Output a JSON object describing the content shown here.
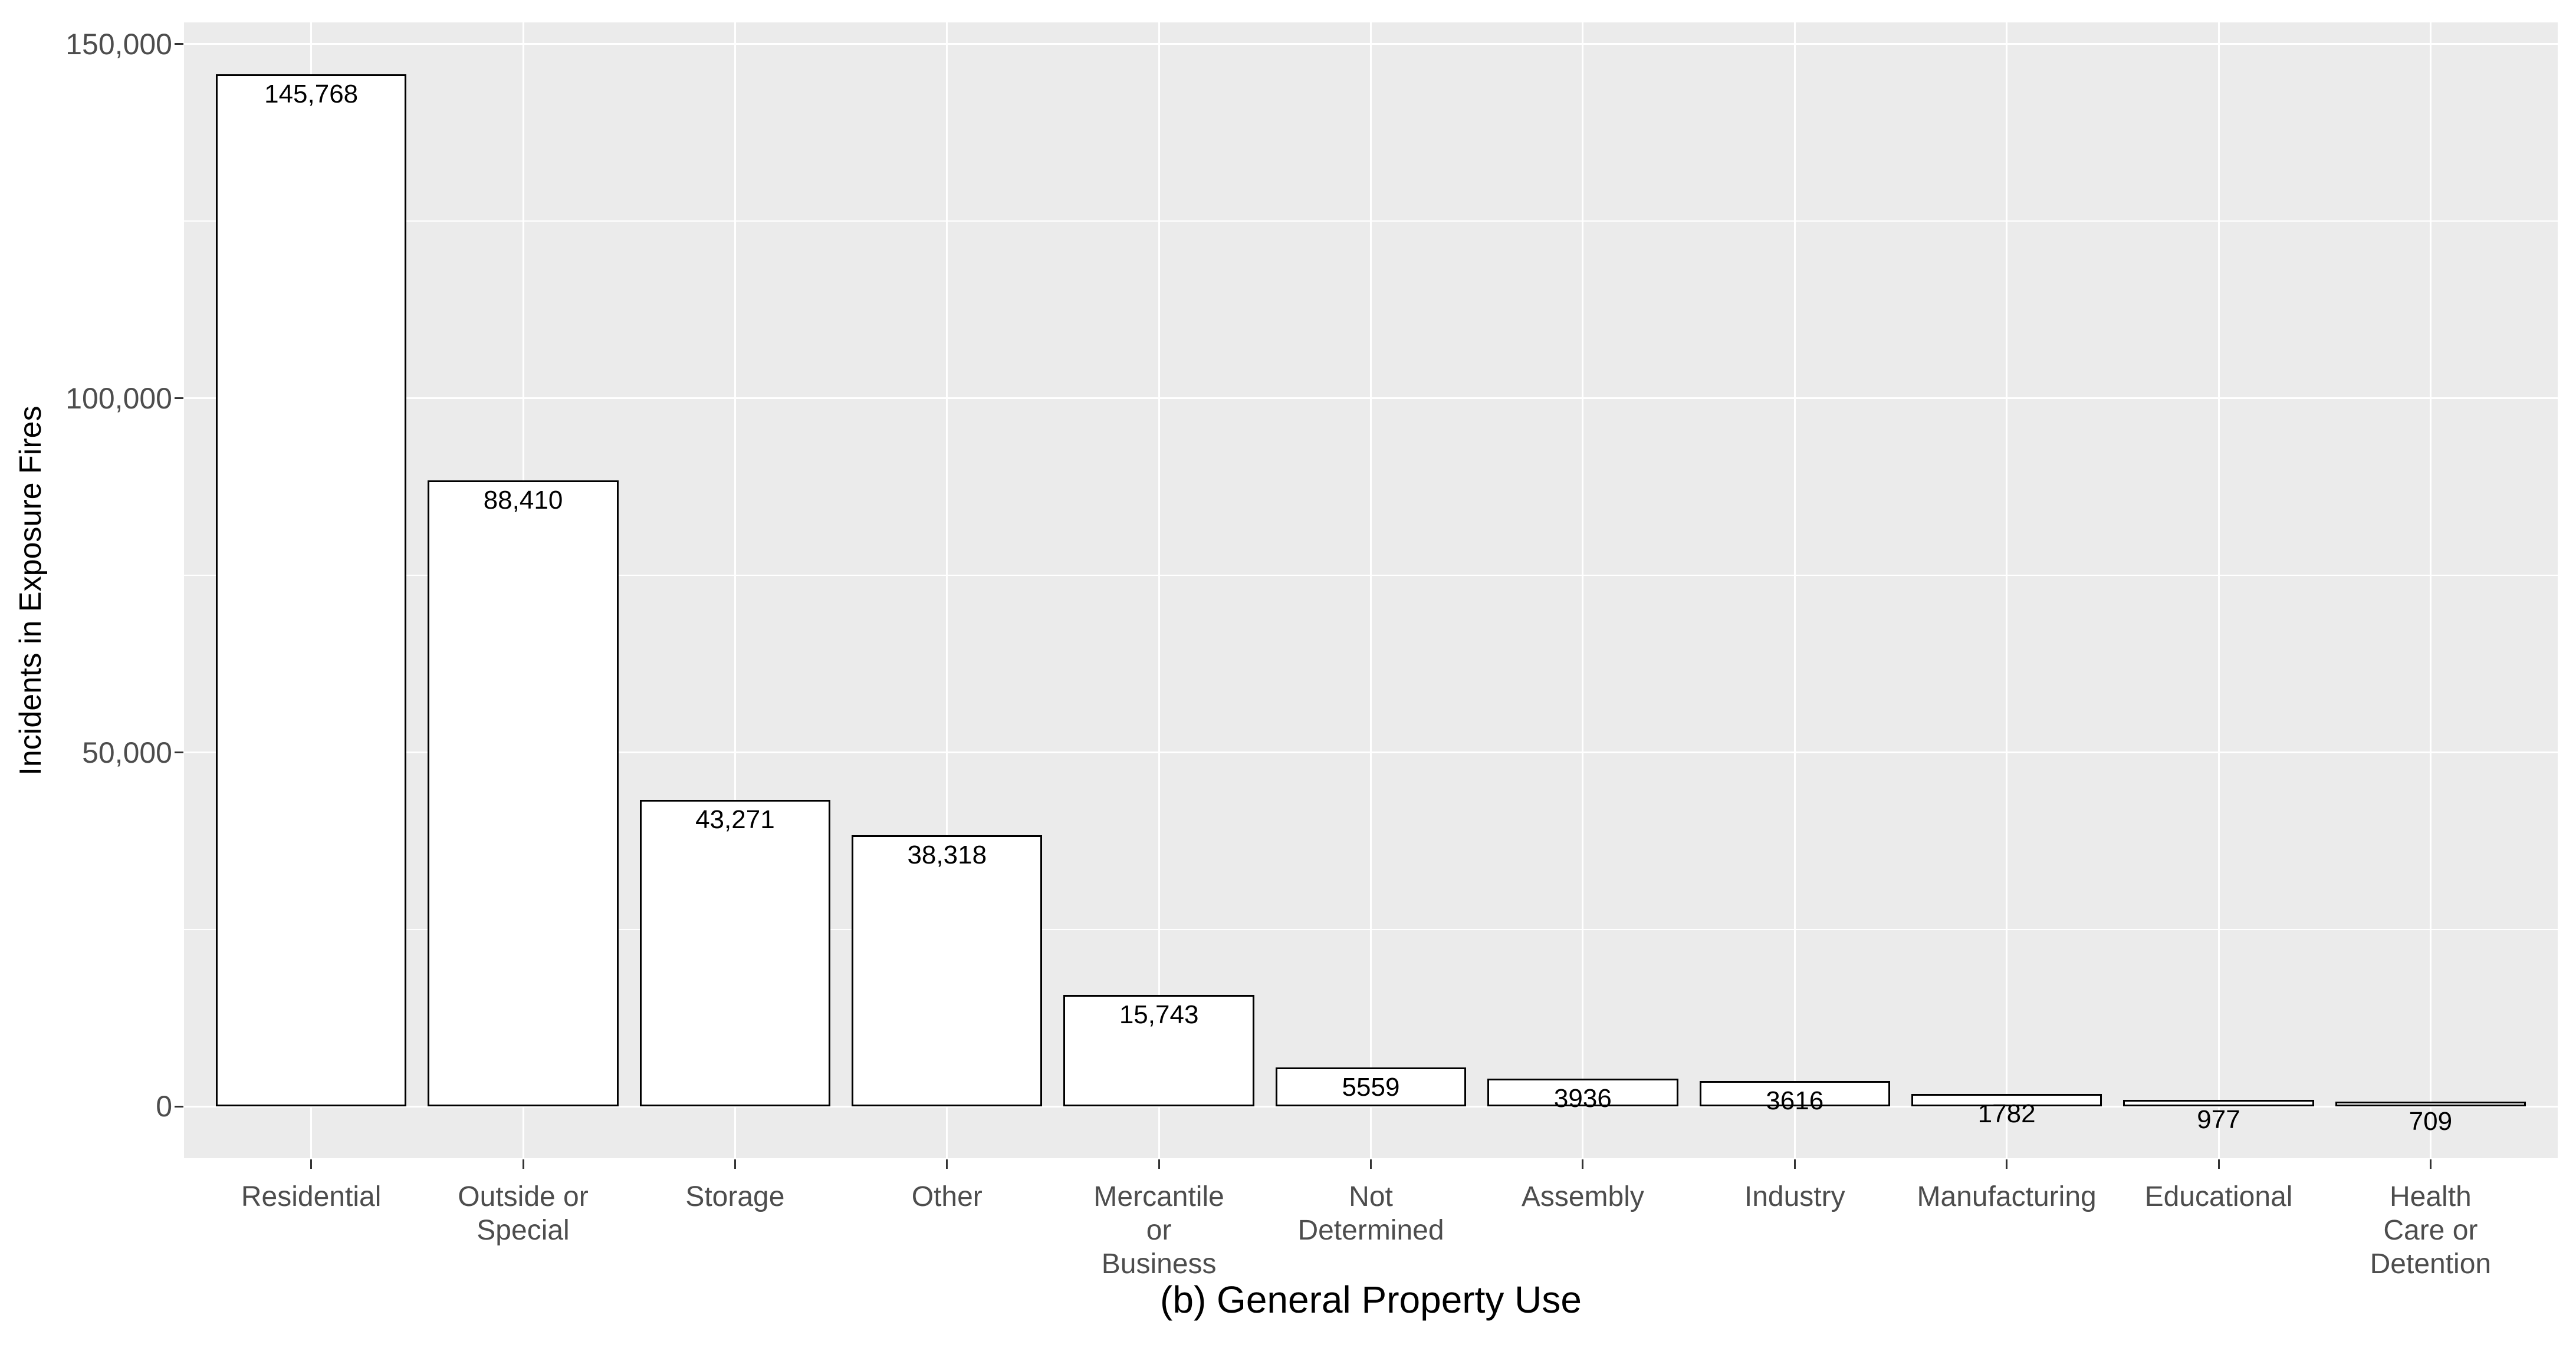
{
  "figure": {
    "background_color": "#FFFFFF",
    "panel_background_color": "#EBEBEB",
    "gridline_color": "#FFFFFF",
    "bar_fill_color": "#FFFFFF",
    "bar_stroke_color": "#000000",
    "axis_text_color": "#4D4D4D",
    "tick_mark_color": "#333333",
    "title_text_color": "#000000"
  },
  "chart_data": {
    "type": "bar",
    "title": "",
    "xlabel": "(b) General Property Use",
    "ylabel": "Incidents in Exposure Fires",
    "categories": [
      "Residential",
      "Outside or Special",
      "Storage",
      "Other",
      "Mercantile or Business",
      "Not Determined",
      "Assembly",
      "Industry",
      "Manufacturing",
      "Educational",
      "Health Care or Detention"
    ],
    "category_label_lines": [
      [
        "Residential"
      ],
      [
        "Outside or",
        "Special"
      ],
      [
        "Storage"
      ],
      [
        "Other"
      ],
      [
        "Mercantile",
        "or",
        "Business"
      ],
      [
        "Not",
        "Determined"
      ],
      [
        "Assembly"
      ],
      [
        "Industry"
      ],
      [
        "Manufacturing"
      ],
      [
        "Educational"
      ],
      [
        "Health",
        "Care or",
        "Detention"
      ]
    ],
    "values": [
      145768,
      88410,
      43271,
      38318,
      15743,
      5559,
      3936,
      3616,
      1782,
      977,
      709
    ],
    "value_labels": [
      "145,768",
      "88,410",
      "43,271",
      "38,318",
      "15,743",
      "5559",
      "3936",
      "3616",
      "1782",
      "977",
      "709"
    ],
    "ylim": [
      0,
      150000
    ],
    "y_major_ticks": [
      0,
      50000,
      100000,
      150000
    ],
    "y_tick_labels": [
      "0",
      "50,000",
      "100,000",
      "150,000"
    ],
    "y_minor_ticks": [
      25000,
      75000,
      125000
    ],
    "grid": true,
    "legend_position": "none",
    "bar_width_fraction": 0.9,
    "axis_expansion_fraction": 0.05
  }
}
